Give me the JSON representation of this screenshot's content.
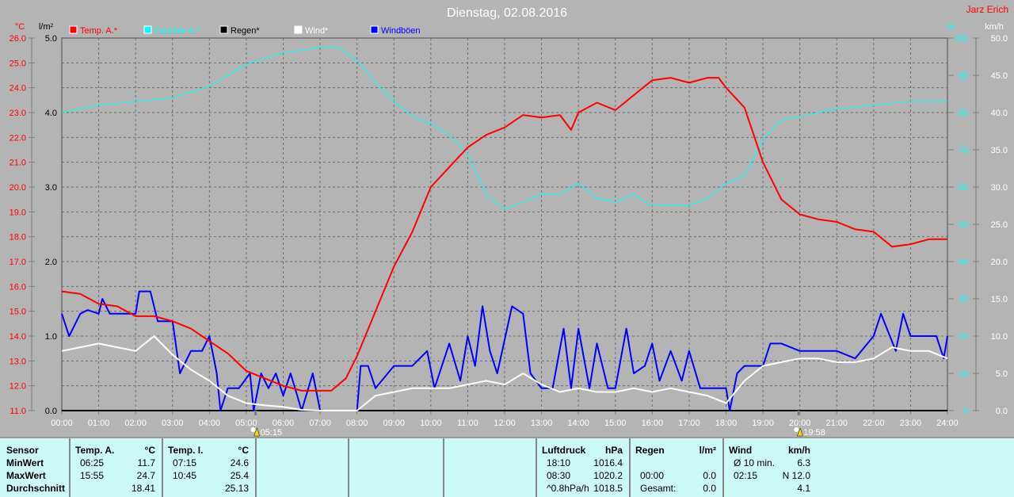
{
  "chart_data": {
    "type": "line",
    "title": "Dienstag, 02.08.2016",
    "author": "Jarz Erich",
    "x_ticks": [
      "00:00",
      "01:00",
      "02:00",
      "03:00",
      "04:00",
      "05:00",
      "06:00",
      "07:00",
      "08:00",
      "09:00",
      "10:00",
      "11:00",
      "12:00",
      "13:00",
      "14:00",
      "15:00",
      "16:00",
      "17:00",
      "18:00",
      "19:00",
      "20:00",
      "21:00",
      "22:00",
      "23:00",
      "24:00"
    ],
    "axes": {
      "temp": {
        "unit": "°C",
        "range": [
          11,
          26
        ],
        "ticks": [
          "11.0",
          "12.0",
          "13.0",
          "14.0",
          "15.0",
          "16.0",
          "17.0",
          "18.0",
          "19.0",
          "20.0",
          "21.0",
          "22.0",
          "23.0",
          "24.0",
          "25.0",
          "26.0"
        ],
        "color": "#ff0000"
      },
      "rain": {
        "unit": "l/m²",
        "range": [
          0,
          5
        ],
        "ticks": [
          "0.0",
          "1.0",
          "2.0",
          "3.0",
          "4.0",
          "5.0"
        ],
        "color": "#000000"
      },
      "humidity": {
        "unit": "%",
        "range": [
          0,
          100
        ],
        "ticks": [
          "0",
          "10",
          "20",
          "30",
          "40",
          "50",
          "60",
          "70",
          "80",
          "90",
          "100"
        ],
        "color": "#00ffff"
      },
      "wind": {
        "unit": "km/h",
        "range": [
          0,
          50
        ],
        "ticks": [
          "0.0",
          "5.0",
          "10.0",
          "15.0",
          "20.0",
          "25.0",
          "30.0",
          "35.0",
          "40.0",
          "45.0",
          "50.0"
        ],
        "color": "#ffffff"
      }
    },
    "sunrise": "05:15",
    "sunset": "19:58",
    "series": [
      {
        "name": "Temp. A.*",
        "axis": "temp",
        "color": "#ff0000",
        "points": [
          [
            0,
            15.8
          ],
          [
            0.5,
            15.7
          ],
          [
            1,
            15.3
          ],
          [
            1.5,
            15.2
          ],
          [
            2,
            14.8
          ],
          [
            2.5,
            14.8
          ],
          [
            3,
            14.6
          ],
          [
            3.5,
            14.3
          ],
          [
            4,
            13.8
          ],
          [
            4.5,
            13.3
          ],
          [
            5,
            12.6
          ],
          [
            5.5,
            12.3
          ],
          [
            6,
            12.0
          ],
          [
            6.5,
            11.8
          ],
          [
            7,
            11.8
          ],
          [
            7.3,
            11.8
          ],
          [
            7.7,
            12.3
          ],
          [
            8,
            13.2
          ],
          [
            8.5,
            15.0
          ],
          [
            9,
            16.8
          ],
          [
            9.5,
            18.2
          ],
          [
            10,
            20.0
          ],
          [
            10.5,
            20.8
          ],
          [
            11,
            21.6
          ],
          [
            11.5,
            22.1
          ],
          [
            12,
            22.4
          ],
          [
            12.5,
            22.9
          ],
          [
            13,
            22.8
          ],
          [
            13.5,
            22.9
          ],
          [
            13.8,
            22.3
          ],
          [
            14,
            23.0
          ],
          [
            14.5,
            23.4
          ],
          [
            15,
            23.1
          ],
          [
            15.5,
            23.7
          ],
          [
            16,
            24.3
          ],
          [
            16.5,
            24.4
          ],
          [
            17,
            24.2
          ],
          [
            17.5,
            24.4
          ],
          [
            17.8,
            24.4
          ],
          [
            18,
            24.0
          ],
          [
            18.5,
            23.2
          ],
          [
            19,
            21.0
          ],
          [
            19.5,
            19.5
          ],
          [
            20,
            18.9
          ],
          [
            20.5,
            18.7
          ],
          [
            21,
            18.6
          ],
          [
            21.5,
            18.3
          ],
          [
            22,
            18.2
          ],
          [
            22.5,
            17.6
          ],
          [
            23,
            17.7
          ],
          [
            23.5,
            17.9
          ],
          [
            24,
            17.9
          ]
        ]
      },
      {
        "name": "Feuchte A.*",
        "axis": "humidity",
        "color": "#00ffff",
        "points": [
          [
            0,
            80
          ],
          [
            1,
            82
          ],
          [
            2,
            83
          ],
          [
            3,
            84
          ],
          [
            4,
            87
          ],
          [
            5,
            93
          ],
          [
            6,
            96
          ],
          [
            7,
            97.5
          ],
          [
            7.5,
            97.5
          ],
          [
            8,
            94
          ],
          [
            8.5,
            88
          ],
          [
            9,
            83
          ],
          [
            9.5,
            79
          ],
          [
            10,
            77
          ],
          [
            10.5,
            74
          ],
          [
            11,
            69
          ],
          [
            11.5,
            58
          ],
          [
            12,
            54
          ],
          [
            12.5,
            56
          ],
          [
            13,
            58
          ],
          [
            13.5,
            58
          ],
          [
            14,
            61
          ],
          [
            14.5,
            57
          ],
          [
            15,
            56
          ],
          [
            15.5,
            58
          ],
          [
            16,
            55
          ],
          [
            16.5,
            55
          ],
          [
            17,
            55
          ],
          [
            17.5,
            57
          ],
          [
            18,
            61
          ],
          [
            18.5,
            63
          ],
          [
            19,
            73
          ],
          [
            19.5,
            78
          ],
          [
            20,
            79
          ],
          [
            21,
            81
          ],
          [
            22,
            82
          ],
          [
            23,
            83
          ],
          [
            24,
            83
          ]
        ]
      },
      {
        "name": "Regen*",
        "axis": "rain",
        "color": "#000000",
        "points": [
          [
            0,
            0
          ],
          [
            24,
            0
          ]
        ]
      },
      {
        "name": "Wind*",
        "axis": "wind",
        "color": "#ffffff",
        "points": [
          [
            0,
            8
          ],
          [
            0.5,
            8.5
          ],
          [
            1,
            9
          ],
          [
            1.5,
            8.5
          ],
          [
            2,
            8
          ],
          [
            2.5,
            10
          ],
          [
            3,
            7.5
          ],
          [
            3.5,
            5.5
          ],
          [
            4,
            4
          ],
          [
            4.5,
            2
          ],
          [
            5,
            1
          ],
          [
            5.5,
            0.7
          ],
          [
            6,
            0.5
          ],
          [
            6.5,
            0.1
          ],
          [
            7,
            0
          ],
          [
            8,
            0
          ],
          [
            8.5,
            2
          ],
          [
            9,
            2.5
          ],
          [
            9.5,
            3
          ],
          [
            10,
            3
          ],
          [
            10.5,
            3
          ],
          [
            11,
            3.5
          ],
          [
            11.5,
            4
          ],
          [
            12,
            3.5
          ],
          [
            12.5,
            5
          ],
          [
            13,
            3.5
          ],
          [
            13.5,
            2.5
          ],
          [
            14,
            3
          ],
          [
            14.5,
            2.5
          ],
          [
            15,
            2.5
          ],
          [
            15.5,
            3
          ],
          [
            16,
            2.5
          ],
          [
            16.5,
            3
          ],
          [
            17,
            2.5
          ],
          [
            17.5,
            2
          ],
          [
            18,
            1
          ],
          [
            18.5,
            4
          ],
          [
            19,
            6
          ],
          [
            19.5,
            6.5
          ],
          [
            20,
            7
          ],
          [
            20.5,
            7
          ],
          [
            21,
            6.5
          ],
          [
            21.5,
            6.5
          ],
          [
            22,
            7
          ],
          [
            22.5,
            8.5
          ],
          [
            23,
            8
          ],
          [
            23.5,
            8
          ],
          [
            24,
            7
          ]
        ]
      },
      {
        "name": "Windböen",
        "axis": "wind",
        "color": "#0000ff",
        "points": [
          [
            0,
            13
          ],
          [
            0.2,
            10
          ],
          [
            0.5,
            13
          ],
          [
            0.7,
            13.5
          ],
          [
            1,
            13
          ],
          [
            1.1,
            15
          ],
          [
            1.3,
            13
          ],
          [
            2,
            13
          ],
          [
            2.1,
            16
          ],
          [
            2.4,
            16
          ],
          [
            2.6,
            12
          ],
          [
            3,
            12
          ],
          [
            3.2,
            5
          ],
          [
            3.5,
            8
          ],
          [
            3.8,
            8
          ],
          [
            4,
            10
          ],
          [
            4.2,
            5
          ],
          [
            4.3,
            0
          ],
          [
            4.5,
            3
          ],
          [
            4.8,
            3
          ],
          [
            5.1,
            5
          ],
          [
            5.2,
            0
          ],
          [
            5.4,
            5
          ],
          [
            5.6,
            3
          ],
          [
            5.8,
            5
          ],
          [
            6,
            2
          ],
          [
            6.2,
            5
          ],
          [
            6.5,
            0
          ],
          [
            6.8,
            5
          ],
          [
            7,
            0
          ],
          [
            8,
            0
          ],
          [
            8.1,
            6
          ],
          [
            8.3,
            6
          ],
          [
            8.5,
            3
          ],
          [
            9,
            6
          ],
          [
            9.5,
            6
          ],
          [
            9.9,
            8
          ],
          [
            10.1,
            3
          ],
          [
            10.5,
            9
          ],
          [
            10.8,
            4
          ],
          [
            11,
            10
          ],
          [
            11.2,
            6
          ],
          [
            11.4,
            14
          ],
          [
            11.6,
            8
          ],
          [
            11.8,
            5
          ],
          [
            12.2,
            14
          ],
          [
            12.5,
            13
          ],
          [
            12.7,
            5
          ],
          [
            13,
            3
          ],
          [
            13.3,
            3
          ],
          [
            13.6,
            11
          ],
          [
            13.8,
            3
          ],
          [
            14,
            11
          ],
          [
            14.3,
            3
          ],
          [
            14.5,
            9
          ],
          [
            14.8,
            3
          ],
          [
            15,
            3
          ],
          [
            15.3,
            11
          ],
          [
            15.5,
            5
          ],
          [
            15.8,
            6
          ],
          [
            16,
            9
          ],
          [
            16.2,
            4
          ],
          [
            16.5,
            8
          ],
          [
            16.8,
            4
          ],
          [
            17,
            8
          ],
          [
            17.3,
            3
          ],
          [
            17.6,
            3
          ],
          [
            18,
            3
          ],
          [
            18.1,
            0
          ],
          [
            18.3,
            5
          ],
          [
            18.5,
            6
          ],
          [
            19,
            6
          ],
          [
            19.2,
            9
          ],
          [
            19.5,
            9
          ],
          [
            20,
            8
          ],
          [
            20.5,
            8
          ],
          [
            21,
            8
          ],
          [
            21.5,
            7
          ],
          [
            22,
            10
          ],
          [
            22.2,
            13
          ],
          [
            22.6,
            8
          ],
          [
            22.8,
            13
          ],
          [
            23,
            10
          ],
          [
            23.7,
            10
          ],
          [
            23.9,
            7
          ],
          [
            24,
            10
          ]
        ]
      }
    ]
  },
  "table": {
    "sensor": {
      "header": "Sensor",
      "rows": [
        "MinWert",
        "MaxWert",
        "Durchschnitt"
      ]
    },
    "temp_a": {
      "header": "Temp. A.",
      "unit": "°C",
      "times": [
        "06:25",
        "15:55",
        ""
      ],
      "values": [
        "11.7",
        "24.7",
        "18.41"
      ]
    },
    "temp_i": {
      "header": "Temp. I.",
      "unit": "°C",
      "times": [
        "07:15",
        "10:45",
        ""
      ],
      "values": [
        "24.6",
        "25.4",
        "25.13"
      ]
    },
    "pressure": {
      "header": "Luftdruck",
      "unit": "hPa",
      "times": [
        "18:10",
        "08:30",
        "^0.8hPa/h"
      ],
      "values": [
        "1016.4",
        "1020.2",
        "1018.5"
      ]
    },
    "rain": {
      "header": "Regen",
      "unit": "l/m²",
      "times": [
        "",
        "00:00",
        "Gesamt:"
      ],
      "values": [
        "",
        "0.0",
        "0.0"
      ]
    },
    "wind": {
      "header": "Wind",
      "unit": "km/h",
      "times": [
        "Ø 10 min.",
        "02:15",
        ""
      ],
      "values": [
        "6.3",
        "N 12.0",
        "4.1"
      ]
    }
  }
}
